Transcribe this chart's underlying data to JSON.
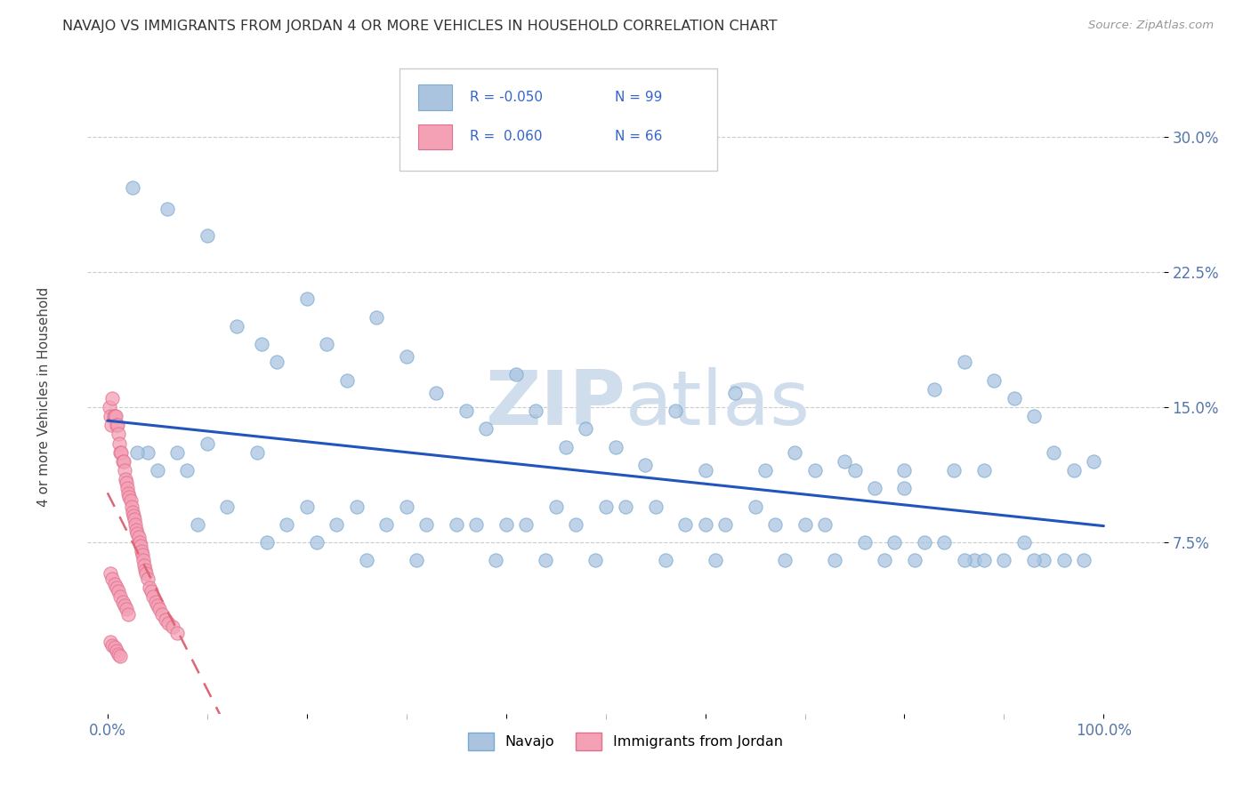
{
  "title": "NAVAJO VS IMMIGRANTS FROM JORDAN 4 OR MORE VEHICLES IN HOUSEHOLD CORRELATION CHART",
  "source_text": "Source: ZipAtlas.com",
  "ylabel": "4 or more Vehicles in Household",
  "yaxis_ticks": [
    0.075,
    0.15,
    0.225,
    0.3
  ],
  "yaxis_labels": [
    "7.5%",
    "15.0%",
    "22.5%",
    "30.0%"
  ],
  "xaxis_ticks": [
    0.0,
    0.2,
    0.4,
    0.6,
    0.8,
    1.0
  ],
  "xaxis_labels": [
    "0.0%",
    "",
    "",
    "",
    "",
    "100.0%"
  ],
  "xlim": [
    -0.02,
    1.06
  ],
  "ylim": [
    -0.02,
    0.345
  ],
  "navajo_color": "#aac4e0",
  "navajo_edge_color": "#7aaad0",
  "jordan_color": "#f4a0b5",
  "jordan_edge_color": "#e07090",
  "navajo_line_color": "#2255bb",
  "jordan_line_color": "#dd6677",
  "watermark_color": "#d0dded",
  "legend_label1": "Navajo",
  "legend_label2": "Immigrants from Jordan",
  "navajo_scatter_x": [
    0.025,
    0.06,
    0.1,
    0.13,
    0.155,
    0.17,
    0.2,
    0.22,
    0.24,
    0.27,
    0.3,
    0.33,
    0.36,
    0.38,
    0.41,
    0.43,
    0.46,
    0.48,
    0.51,
    0.54,
    0.57,
    0.6,
    0.63,
    0.66,
    0.69,
    0.71,
    0.74,
    0.77,
    0.8,
    0.83,
    0.86,
    0.89,
    0.91,
    0.93,
    0.95,
    0.97,
    0.99,
    0.85,
    0.88,
    0.8,
    0.75,
    0.7,
    0.65,
    0.6,
    0.55,
    0.5,
    0.45,
    0.4,
    0.35,
    0.3,
    0.25,
    0.2,
    0.15,
    0.1,
    0.08,
    0.07,
    0.05,
    0.04,
    0.03,
    0.09,
    0.12,
    0.18,
    0.23,
    0.28,
    0.32,
    0.37,
    0.42,
    0.47,
    0.52,
    0.58,
    0.62,
    0.67,
    0.72,
    0.76,
    0.79,
    0.82,
    0.84,
    0.87,
    0.9,
    0.92,
    0.94,
    0.96,
    0.98,
    0.16,
    0.21,
    0.26,
    0.31,
    0.39,
    0.44,
    0.49,
    0.56,
    0.61,
    0.68,
    0.73,
    0.78,
    0.81,
    0.86,
    0.88,
    0.93
  ],
  "navajo_scatter_y": [
    0.272,
    0.26,
    0.245,
    0.195,
    0.185,
    0.175,
    0.21,
    0.185,
    0.165,
    0.2,
    0.178,
    0.158,
    0.148,
    0.138,
    0.168,
    0.148,
    0.128,
    0.138,
    0.128,
    0.118,
    0.148,
    0.115,
    0.158,
    0.115,
    0.125,
    0.115,
    0.12,
    0.105,
    0.115,
    0.16,
    0.175,
    0.165,
    0.155,
    0.145,
    0.125,
    0.115,
    0.12,
    0.115,
    0.115,
    0.105,
    0.115,
    0.085,
    0.095,
    0.085,
    0.095,
    0.095,
    0.095,
    0.085,
    0.085,
    0.095,
    0.095,
    0.095,
    0.125,
    0.13,
    0.115,
    0.125,
    0.115,
    0.125,
    0.125,
    0.085,
    0.095,
    0.085,
    0.085,
    0.085,
    0.085,
    0.085,
    0.085,
    0.085,
    0.095,
    0.085,
    0.085,
    0.085,
    0.085,
    0.075,
    0.075,
    0.075,
    0.075,
    0.065,
    0.065,
    0.075,
    0.065,
    0.065,
    0.065,
    0.075,
    0.075,
    0.065,
    0.065,
    0.065,
    0.065,
    0.065,
    0.065,
    0.065,
    0.065,
    0.065,
    0.065,
    0.065,
    0.065,
    0.065,
    0.065
  ],
  "jordan_scatter_x": [
    0.002,
    0.003,
    0.004,
    0.005,
    0.006,
    0.007,
    0.008,
    0.009,
    0.01,
    0.011,
    0.012,
    0.013,
    0.014,
    0.015,
    0.016,
    0.017,
    0.018,
    0.019,
    0.02,
    0.021,
    0.022,
    0.023,
    0.024,
    0.025,
    0.026,
    0.027,
    0.028,
    0.029,
    0.03,
    0.031,
    0.032,
    0.033,
    0.034,
    0.035,
    0.036,
    0.037,
    0.038,
    0.039,
    0.04,
    0.042,
    0.044,
    0.046,
    0.048,
    0.05,
    0.052,
    0.055,
    0.058,
    0.061,
    0.065,
    0.07,
    0.003,
    0.005,
    0.007,
    0.009,
    0.011,
    0.013,
    0.015,
    0.017,
    0.019,
    0.021,
    0.003,
    0.005,
    0.007,
    0.009,
    0.011,
    0.013
  ],
  "jordan_scatter_y": [
    0.15,
    0.145,
    0.14,
    0.155,
    0.145,
    0.145,
    0.145,
    0.14,
    0.14,
    0.135,
    0.13,
    0.125,
    0.125,
    0.12,
    0.12,
    0.115,
    0.11,
    0.108,
    0.105,
    0.102,
    0.1,
    0.098,
    0.095,
    0.092,
    0.09,
    0.088,
    0.085,
    0.082,
    0.08,
    0.078,
    0.075,
    0.073,
    0.07,
    0.068,
    0.065,
    0.062,
    0.06,
    0.058,
    0.055,
    0.05,
    0.048,
    0.045,
    0.042,
    0.04,
    0.038,
    0.035,
    0.032,
    0.03,
    0.028,
    0.025,
    0.058,
    0.055,
    0.052,
    0.05,
    0.048,
    0.045,
    0.042,
    0.04,
    0.038,
    0.035,
    0.02,
    0.018,
    0.017,
    0.015,
    0.013,
    0.012
  ]
}
